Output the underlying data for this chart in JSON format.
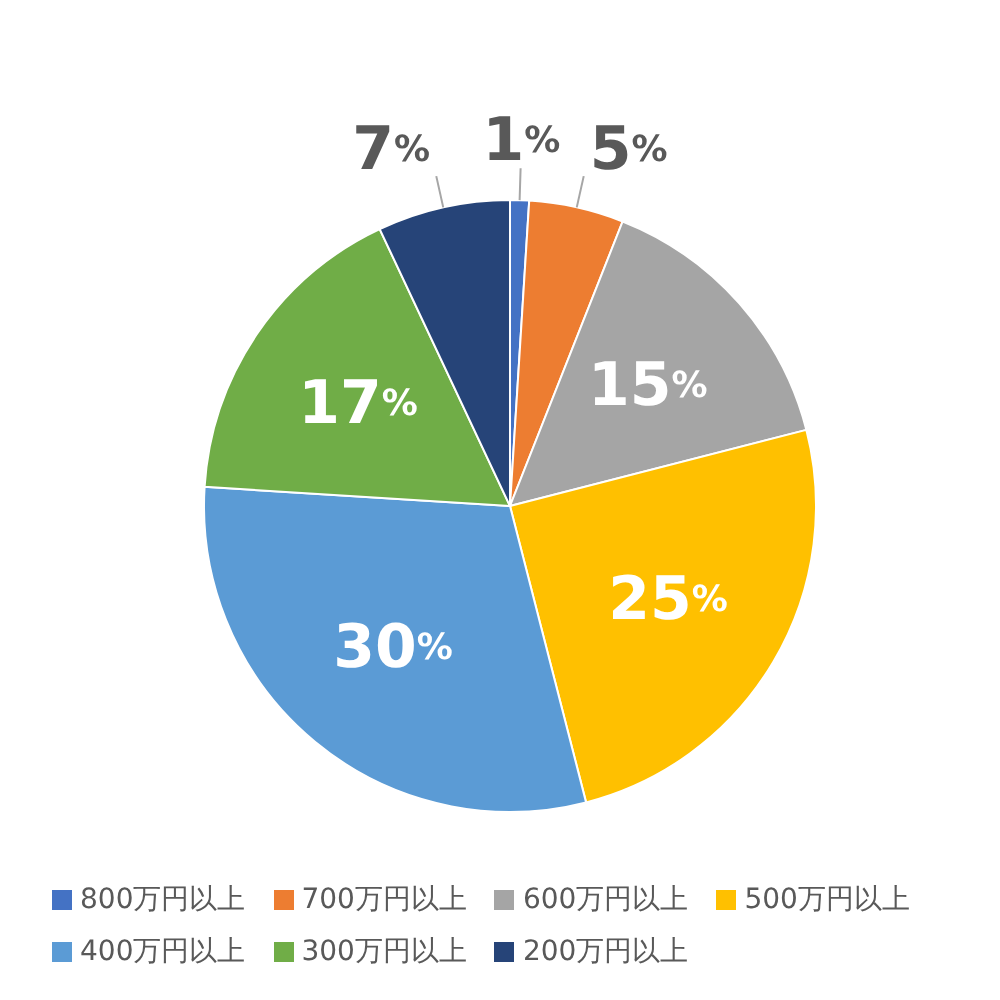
{
  "chart_data": {
    "type": "pie",
    "categories": [
      "800万円以上",
      "700万円以上",
      "600万円以上",
      "500万円以上",
      "400万円以上",
      "300万円以上",
      "200万円以上"
    ],
    "values": [
      1,
      5,
      15,
      25,
      30,
      17,
      7
    ],
    "colors": [
      "#4472c4",
      "#ed7d31",
      "#a5a5a5",
      "#ffc000",
      "#5b9bd5",
      "#70ad47",
      "#264478"
    ],
    "value_labels": [
      "1%",
      "5%",
      "15%",
      "25%",
      "30%",
      "17%",
      "7%"
    ],
    "legend": "bottom"
  }
}
